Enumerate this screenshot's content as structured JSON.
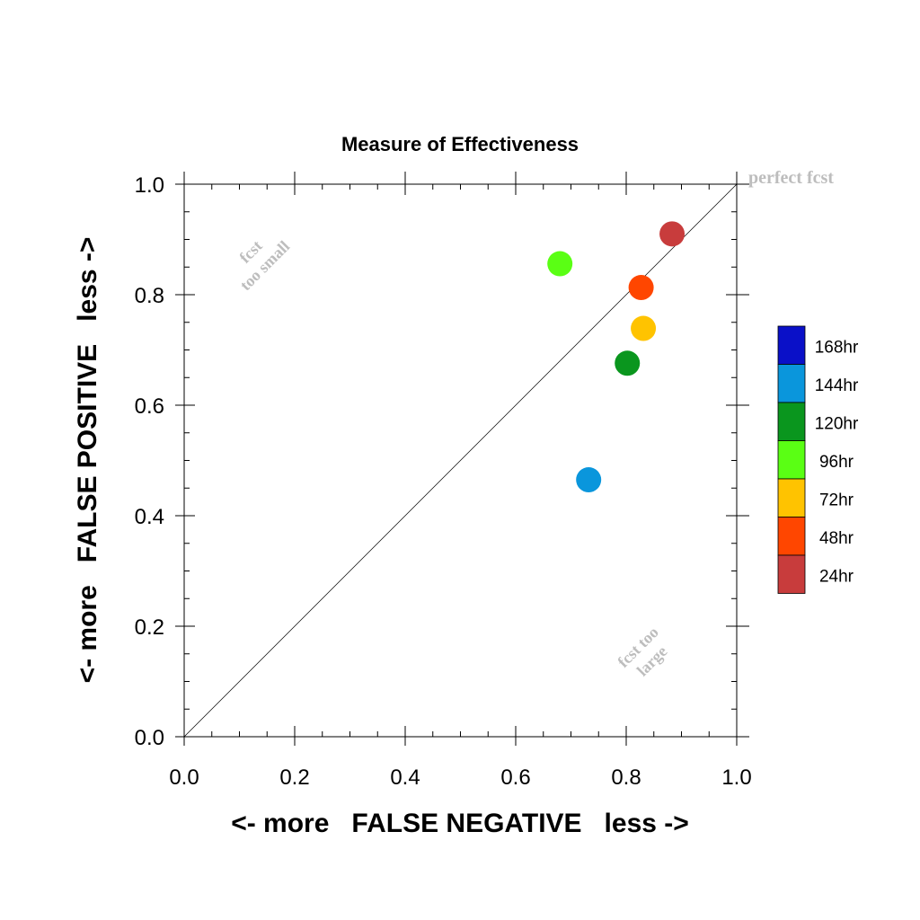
{
  "chart_data": {
    "type": "scatter",
    "title": "Measure of Effectiveness",
    "xlabel": "<- more   FALSE NEGATIVE   less ->",
    "ylabel": "<- more   FALSE POSITIVE   less ->",
    "xlim": [
      0.0,
      1.0
    ],
    "ylim": [
      0.0,
      1.0
    ],
    "xticks": [
      "0.0",
      "0.2",
      "0.4",
      "0.6",
      "0.8",
      "1.0"
    ],
    "yticks": [
      "0.0",
      "0.2",
      "0.4",
      "0.6",
      "0.8",
      "1.0"
    ],
    "reference_line": {
      "x": [
        0,
        1
      ],
      "y": [
        0,
        1
      ]
    },
    "grid": false,
    "legend_position": "right",
    "annotations": {
      "perfect": "perfect fcst",
      "too_small": [
        "fcst",
        "too small"
      ],
      "too_large": [
        "fcst too",
        "large"
      ]
    },
    "legend": [
      {
        "label": "168hr",
        "color": "#0a10c8"
      },
      {
        "label": "144hr",
        "color": "#0a96dc"
      },
      {
        "label": "120hr",
        "color": "#0a961e"
      },
      {
        "label": "96hr",
        "color": "#5aff14"
      },
      {
        "label": "72hr",
        "color": "#ffc300"
      },
      {
        "label": "48hr",
        "color": "#ff4600"
      },
      {
        "label": "24hr",
        "color": "#c83c3c"
      }
    ],
    "points": [
      {
        "series": "24hr",
        "x": 0.883,
        "y": 0.91,
        "color": "#c83c3c"
      },
      {
        "series": "48hr",
        "x": 0.827,
        "y": 0.813,
        "color": "#ff4600"
      },
      {
        "series": "72hr",
        "x": 0.831,
        "y": 0.739,
        "color": "#ffc300"
      },
      {
        "series": "96hr",
        "x": 0.68,
        "y": 0.856,
        "color": "#5aff14"
      },
      {
        "series": "120hr",
        "x": 0.802,
        "y": 0.676,
        "color": "#0a961e"
      },
      {
        "series": "144hr",
        "x": 0.732,
        "y": 0.465,
        "color": "#0a96dc"
      }
    ]
  }
}
